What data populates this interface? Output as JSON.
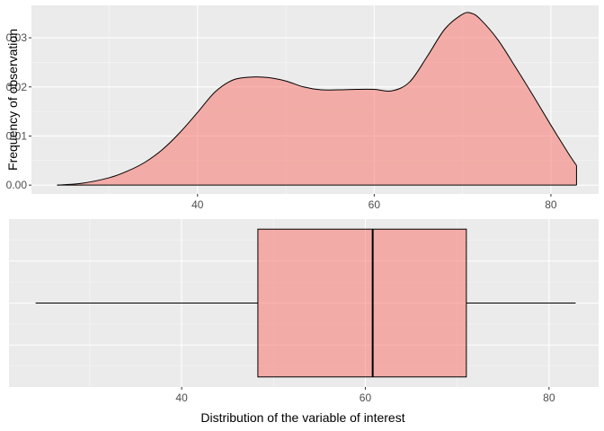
{
  "chart_data": [
    {
      "type": "area",
      "subtype": "density",
      "title": "",
      "xlabel": "",
      "ylabel": "Frequency of observation",
      "xlim": [
        21.2,
        85.4
      ],
      "ylim": [
        -0.0018,
        0.0366
      ],
      "xticks": [
        40,
        60,
        80
      ],
      "xtick_labels": [
        "40",
        "60",
        "80"
      ],
      "yticks": [
        0.0,
        0.01,
        0.02,
        0.03
      ],
      "ytick_labels": [
        "0.00",
        "0.01",
        "0.02",
        "0.03"
      ],
      "grid": true,
      "fill_color": "#F8766D",
      "fill_opacity": 0.55,
      "line_color": "#000000",
      "series": [
        {
          "x": [
            24.1,
            27,
            30,
            32,
            34,
            36,
            38,
            40,
            42,
            44,
            46,
            48,
            50,
            52,
            54,
            56,
            58,
            60,
            62,
            64,
            66,
            68,
            70,
            71,
            72,
            74,
            76,
            78,
            80,
            82,
            82.9
          ],
          "y": [
            0.0,
            0.0004,
            0.0015,
            0.0028,
            0.0046,
            0.0072,
            0.0107,
            0.0148,
            0.019,
            0.0214,
            0.022,
            0.0219,
            0.0212,
            0.02,
            0.0194,
            0.0194,
            0.0195,
            0.0195,
            0.0192,
            0.021,
            0.0262,
            0.0318,
            0.0348,
            0.035,
            0.0338,
            0.0296,
            0.024,
            0.0182,
            0.0122,
            0.0064,
            0.004
          ]
        }
      ]
    },
    {
      "type": "box",
      "title": "",
      "xlabel": "Distribution of the variable of interest",
      "ylabel": "",
      "xlim": [
        21.2,
        85.4
      ],
      "xticks": [
        40,
        60,
        80
      ],
      "xtick_labels": [
        "40",
        "60",
        "80"
      ],
      "grid": true,
      "fill_color": "#F8766D",
      "fill_opacity": 0.55,
      "line_color": "#000000",
      "whisker_low": 24.1,
      "q1": 48.3,
      "median": 60.8,
      "q3": 71.0,
      "whisker_high": 82.9
    }
  ]
}
